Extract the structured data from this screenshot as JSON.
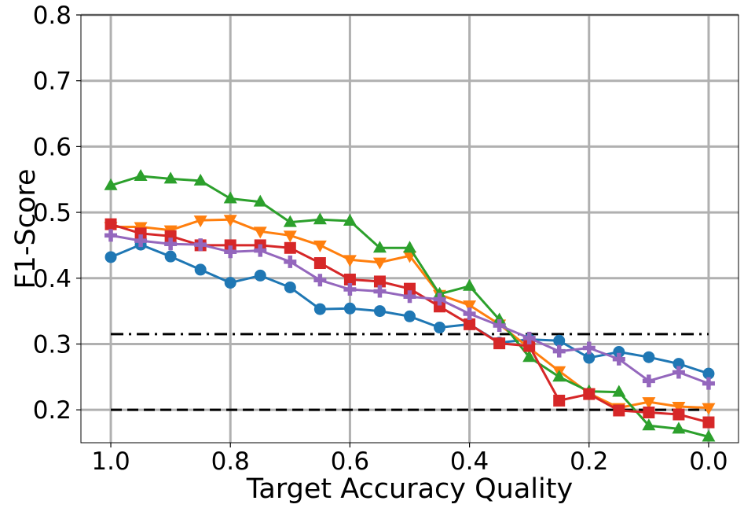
{
  "chart_data": {
    "type": "line",
    "title": "",
    "xlabel": "Target Accuracy Quality",
    "ylabel": "F1-Score",
    "xlim": [
      1.05,
      -0.05
    ],
    "ylim": [
      0.15,
      0.8
    ],
    "x_reversed": true,
    "grid": true,
    "x_ticks": [
      "1.0",
      "0.8",
      "0.6",
      "0.4",
      "0.2",
      "0.0"
    ],
    "y_ticks": [
      "0.2",
      "0.3",
      "0.4",
      "0.5",
      "0.6",
      "0.7",
      "0.8"
    ],
    "x": [
      1.0,
      0.95,
      0.9,
      0.85,
      0.8,
      0.75,
      0.7,
      0.65,
      0.6,
      0.55,
      0.5,
      0.45,
      0.4,
      0.35,
      0.3,
      0.25,
      0.2,
      0.15,
      0.1,
      0.05,
      0.0
    ],
    "series": [
      {
        "color": "#1f77b4",
        "marker": "circle",
        "values": [
          0.432,
          0.451,
          0.433,
          0.413,
          0.393,
          0.404,
          0.386,
          0.353,
          0.354,
          0.35,
          0.342,
          0.325,
          0.33,
          0.302,
          0.307,
          0.305,
          0.279,
          0.288,
          0.28,
          0.27,
          0.255
        ]
      },
      {
        "color": "#ff7f0e",
        "marker": "triangle-down",
        "values": [
          0.478,
          0.478,
          0.473,
          0.488,
          0.489,
          0.471,
          0.465,
          0.45,
          0.428,
          0.424,
          0.434,
          0.375,
          0.359,
          0.33,
          0.294,
          0.259,
          0.225,
          0.203,
          0.212,
          0.205,
          0.203
        ]
      },
      {
        "color": "#2ca02c",
        "marker": "triangle-up",
        "values": [
          0.541,
          0.555,
          0.551,
          0.548,
          0.521,
          0.516,
          0.485,
          0.489,
          0.487,
          0.446,
          0.446,
          0.376,
          0.388,
          0.337,
          0.28,
          0.25,
          0.228,
          0.227,
          0.176,
          0.171,
          0.159
        ]
      },
      {
        "color": "#d62728",
        "marker": "square",
        "values": [
          0.482,
          0.468,
          0.464,
          0.45,
          0.45,
          0.45,
          0.446,
          0.423,
          0.398,
          0.395,
          0.384,
          0.357,
          0.33,
          0.301,
          0.297,
          0.214,
          0.224,
          0.199,
          0.196,
          0.193,
          0.181
        ]
      },
      {
        "color": "#9467bd",
        "marker": "plus",
        "values": [
          0.465,
          0.457,
          0.452,
          0.451,
          0.44,
          0.442,
          0.425,
          0.397,
          0.383,
          0.38,
          0.372,
          0.368,
          0.346,
          0.328,
          0.309,
          0.289,
          0.294,
          0.277,
          0.244,
          0.257,
          0.24
        ]
      }
    ],
    "reference_lines": [
      {
        "style": "dash-dot",
        "color": "#000000",
        "y": 0.315,
        "x_range": [
          1.0,
          0.0
        ]
      },
      {
        "style": "dashed",
        "color": "#000000",
        "y": 0.2,
        "x_range": [
          1.0,
          0.0
        ]
      }
    ]
  }
}
